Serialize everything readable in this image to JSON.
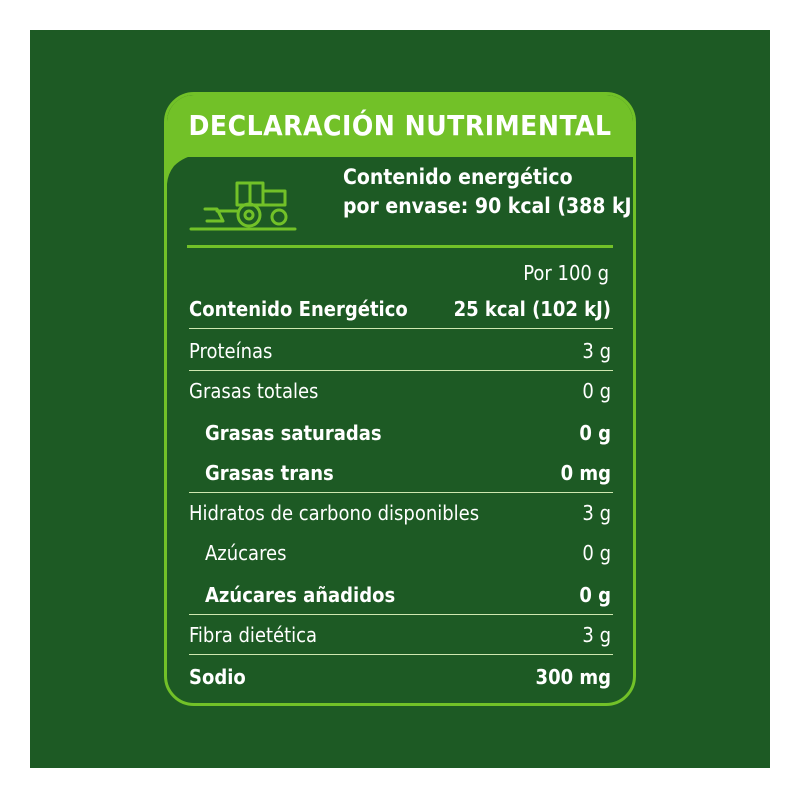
{
  "label": {
    "title": "DECLARACIÓN NUTRIMENTAL",
    "energy_line1": "Contenido energético",
    "energy_line2": "por envase: 90 kcal (388 kJ)",
    "column_header": "Por 100 g",
    "icon": "tractor-icon",
    "colors": {
      "background": "#1d5a24",
      "accent": "#72c128",
      "text": "#ffffff"
    }
  },
  "rows": [
    {
      "name": "Contenido Energético",
      "value": "25 kcal (102 kJ)"
    },
    {
      "name": "Proteínas",
      "value": "3 g"
    },
    {
      "name": "Grasas totales",
      "value": "0 g"
    },
    {
      "name": "Grasas saturadas",
      "value": "0 g"
    },
    {
      "name": "Grasas trans",
      "value": "0 mg"
    },
    {
      "name": "Hidratos de carbono disponibles",
      "value": "3 g"
    },
    {
      "name": "Azúcares",
      "value": "0 g"
    },
    {
      "name": "Azúcares añadidos",
      "value": "0 g"
    },
    {
      "name": "Fibra dietética",
      "value": "3 g"
    },
    {
      "name": "Sodio",
      "value": "300 mg"
    }
  ]
}
